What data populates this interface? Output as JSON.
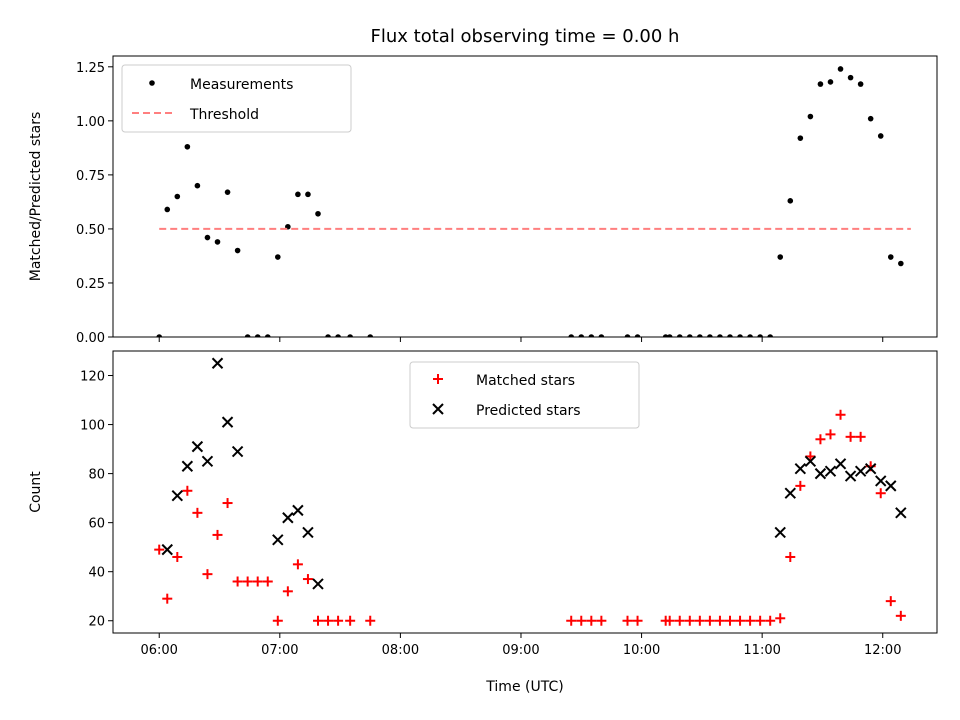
{
  "figure": {
    "title": "Flux total observing time = 0.00 h"
  },
  "chart_data": [
    {
      "type": "scatter",
      "ylabel": "Matched/Predicted stars",
      "xlabel": "",
      "ylim": [
        0,
        1.3
      ],
      "yticks": [
        "0.00",
        "0.25",
        "0.50",
        "0.75",
        "1.00",
        "1.25"
      ],
      "ytick_values": [
        0,
        0.25,
        0.5,
        0.75,
        1.0,
        1.25
      ],
      "legend": {
        "placement": "upper-left",
        "entries": [
          "Measurements",
          "Threshold"
        ]
      },
      "series": [
        {
          "name": "Measurements",
          "color": "#000000",
          "marker": "dot",
          "points": [
            [
              "06:00",
              0.0
            ],
            [
              "06:04",
              0.59
            ],
            [
              "06:09",
              0.65
            ],
            [
              "06:14",
              0.88
            ],
            [
              "06:19",
              0.7
            ],
            [
              "06:24",
              0.46
            ],
            [
              "06:29",
              0.44
            ],
            [
              "06:34",
              0.67
            ],
            [
              "06:39",
              0.4
            ],
            [
              "06:44",
              0.0
            ],
            [
              "06:49",
              0.0
            ],
            [
              "06:54",
              0.0
            ],
            [
              "06:59",
              0.37
            ],
            [
              "07:04",
              0.51
            ],
            [
              "07:09",
              0.66
            ],
            [
              "07:14",
              0.66
            ],
            [
              "07:19",
              0.57
            ],
            [
              "07:24",
              0.0
            ],
            [
              "07:29",
              0.0
            ],
            [
              "07:35",
              0.0
            ],
            [
              "07:45",
              0.0
            ],
            [
              "09:25",
              0.0
            ],
            [
              "09:30",
              0.0
            ],
            [
              "09:35",
              0.0
            ],
            [
              "09:40",
              0.0
            ],
            [
              "09:53",
              0.0
            ],
            [
              "09:58",
              0.0
            ],
            [
              "10:12",
              0.0
            ],
            [
              "10:14",
              0.0
            ],
            [
              "10:19",
              0.0
            ],
            [
              "10:24",
              0.0
            ],
            [
              "10:29",
              0.0
            ],
            [
              "10:34",
              0.0
            ],
            [
              "10:39",
              0.0
            ],
            [
              "10:44",
              0.0
            ],
            [
              "10:49",
              0.0
            ],
            [
              "10:54",
              0.0
            ],
            [
              "10:59",
              0.0
            ],
            [
              "11:04",
              0.0
            ],
            [
              "11:09",
              0.37
            ],
            [
              "11:14",
              0.63
            ],
            [
              "11:19",
              0.92
            ],
            [
              "11:24",
              1.02
            ],
            [
              "11:29",
              1.17
            ],
            [
              "11:34",
              1.18
            ],
            [
              "11:39",
              1.24
            ],
            [
              "11:44",
              1.2
            ],
            [
              "11:49",
              1.17
            ],
            [
              "11:54",
              1.01
            ],
            [
              "11:59",
              0.93
            ],
            [
              "12:04",
              0.37
            ],
            [
              "12:09",
              0.34
            ]
          ]
        },
        {
          "name": "Threshold",
          "color": "#ff7f7f",
          "style": "dashed",
          "points": [
            [
              "06:00",
              0.5
            ],
            [
              "12:14",
              0.5
            ]
          ]
        }
      ]
    },
    {
      "type": "scatter",
      "ylabel": "Count",
      "xlabel": "Time (UTC)",
      "ylim": [
        15,
        130
      ],
      "yticks": [
        "20",
        "40",
        "60",
        "80",
        "100",
        "120"
      ],
      "ytick_values": [
        20,
        40,
        60,
        80,
        100,
        120
      ],
      "xlim": [
        "05:37",
        "12:27"
      ],
      "xticks": [
        "06:00",
        "07:00",
        "08:00",
        "09:00",
        "10:00",
        "11:00",
        "12:00"
      ],
      "legend": {
        "placement": "upper-center",
        "entries": [
          "Matched stars",
          "Predicted stars"
        ]
      },
      "series": [
        {
          "name": "Matched stars",
          "color": "#ff0000",
          "marker": "plus",
          "points": [
            [
              "06:00",
              49
            ],
            [
              "06:04",
              29
            ],
            [
              "06:09",
              46
            ],
            [
              "06:14",
              73
            ],
            [
              "06:19",
              64
            ],
            [
              "06:24",
              39
            ],
            [
              "06:29",
              55
            ],
            [
              "06:34",
              68
            ],
            [
              "06:39",
              36
            ],
            [
              "06:44",
              36
            ],
            [
              "06:49",
              36
            ],
            [
              "06:54",
              36
            ],
            [
              "06:59",
              20
            ],
            [
              "07:04",
              32
            ],
            [
              "07:09",
              43
            ],
            [
              "07:14",
              37
            ],
            [
              "07:19",
              20
            ],
            [
              "07:24",
              20
            ],
            [
              "07:29",
              20
            ],
            [
              "07:35",
              20
            ],
            [
              "07:45",
              20
            ],
            [
              "09:25",
              20
            ],
            [
              "09:30",
              20
            ],
            [
              "09:35",
              20
            ],
            [
              "09:40",
              20
            ],
            [
              "09:53",
              20
            ],
            [
              "09:58",
              20
            ],
            [
              "10:12",
              20
            ],
            [
              "10:14",
              20
            ],
            [
              "10:19",
              20
            ],
            [
              "10:24",
              20
            ],
            [
              "10:29",
              20
            ],
            [
              "10:34",
              20
            ],
            [
              "10:39",
              20
            ],
            [
              "10:44",
              20
            ],
            [
              "10:49",
              20
            ],
            [
              "10:54",
              20
            ],
            [
              "10:59",
              20
            ],
            [
              "11:04",
              20
            ],
            [
              "11:09",
              21
            ],
            [
              "11:14",
              46
            ],
            [
              "11:19",
              75
            ],
            [
              "11:24",
              87
            ],
            [
              "11:29",
              94
            ],
            [
              "11:34",
              96
            ],
            [
              "11:39",
              104
            ],
            [
              "11:44",
              95
            ],
            [
              "11:49",
              95
            ],
            [
              "11:54",
              83
            ],
            [
              "11:59",
              72
            ],
            [
              "12:04",
              28
            ],
            [
              "12:09",
              22
            ]
          ]
        },
        {
          "name": "Predicted stars",
          "color": "#000000",
          "marker": "x",
          "points": [
            [
              "06:04",
              49
            ],
            [
              "06:09",
              71
            ],
            [
              "06:14",
              83
            ],
            [
              "06:19",
              91
            ],
            [
              "06:24",
              85
            ],
            [
              "06:29",
              125
            ],
            [
              "06:34",
              101
            ],
            [
              "06:39",
              89
            ],
            [
              "06:59",
              53
            ],
            [
              "07:04",
              62
            ],
            [
              "07:09",
              65
            ],
            [
              "07:14",
              56
            ],
            [
              "07:19",
              35
            ],
            [
              "11:09",
              56
            ],
            [
              "11:14",
              72
            ],
            [
              "11:19",
              82
            ],
            [
              "11:24",
              85
            ],
            [
              "11:29",
              80
            ],
            [
              "11:34",
              81
            ],
            [
              "11:39",
              84
            ],
            [
              "11:44",
              79
            ],
            [
              "11:49",
              81
            ],
            [
              "11:54",
              82
            ],
            [
              "11:59",
              77
            ],
            [
              "12:04",
              75
            ],
            [
              "12:09",
              64
            ]
          ]
        }
      ]
    }
  ]
}
